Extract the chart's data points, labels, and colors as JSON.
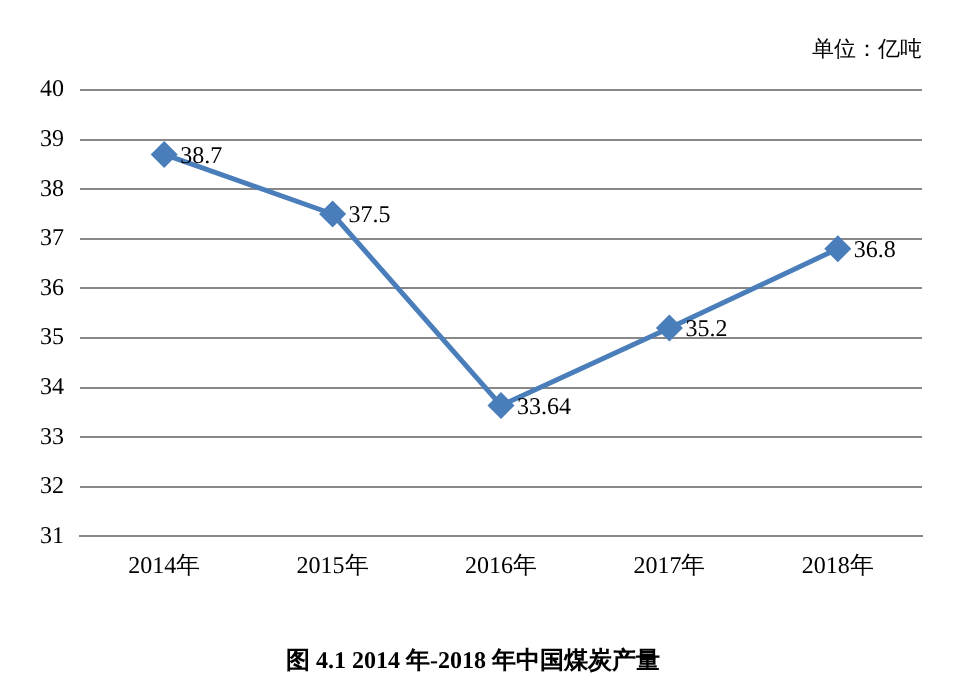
{
  "chart_data": {
    "type": "line",
    "title": "图 4.1 2014 年-2018 年中国煤炭产量",
    "annotations": [
      "单位：亿吨"
    ],
    "categories": [
      "2014年",
      "2015年",
      "2016年",
      "2017年",
      "2018年"
    ],
    "series": [
      {
        "color": "#4a7ebb",
        "values": [
          38.7,
          37.5,
          33.64,
          35.2,
          36.8
        ]
      }
    ],
    "ylim": [
      31,
      40
    ],
    "yticks": [
      31,
      32,
      33,
      34,
      35,
      36,
      37,
      38,
      39,
      40
    ],
    "grid": "y",
    "legend": false,
    "marker": "diamond",
    "line_style": "solid",
    "data_labels": true
  }
}
